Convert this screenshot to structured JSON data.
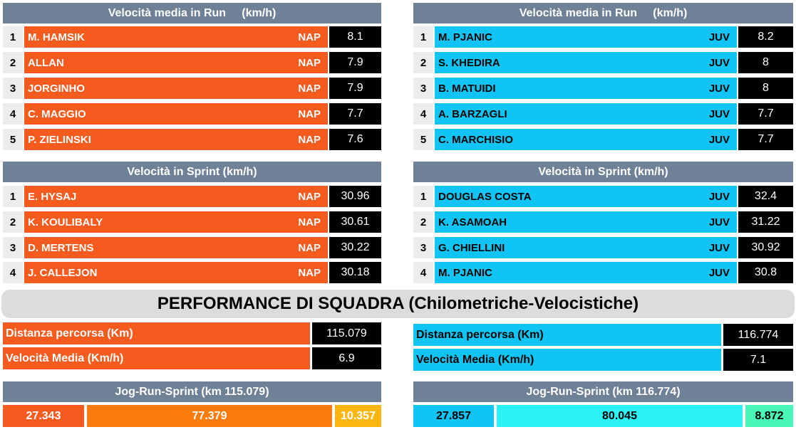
{
  "run_speed": {
    "title": "Velocità media in Run     (km/h)",
    "nap": [
      {
        "rank": "1",
        "name": "M. HAMSIK",
        "team": "NAP",
        "value": "8.1"
      },
      {
        "rank": "2",
        "name": "ALLAN",
        "team": "NAP",
        "value": "7.9"
      },
      {
        "rank": "3",
        "name": "JORGINHO",
        "team": "NAP",
        "value": "7.9"
      },
      {
        "rank": "4",
        "name": "C. MAGGIO",
        "team": "NAP",
        "value": "7.7"
      },
      {
        "rank": "5",
        "name": "P. ZIELINSKI",
        "team": "NAP",
        "value": "7.6"
      }
    ],
    "juv": [
      {
        "rank": "1",
        "name": "M. PJANIC",
        "team": "JUV",
        "value": "8.2"
      },
      {
        "rank": "2",
        "name": "S. KHEDIRA",
        "team": "JUV",
        "value": "8"
      },
      {
        "rank": "3",
        "name": "B. MATUIDI",
        "team": "JUV",
        "value": "8"
      },
      {
        "rank": "4",
        "name": "A. BARZAGLI",
        "team": "JUV",
        "value": "7.7"
      },
      {
        "rank": "5",
        "name": "C. MARCHISIO",
        "team": "JUV",
        "value": "7.7"
      }
    ]
  },
  "sprint_speed": {
    "title": "Velocità in Sprint (km/h)",
    "nap": [
      {
        "rank": "1",
        "name": "E. HYSAJ",
        "team": "NAP",
        "value": "30.96"
      },
      {
        "rank": "2",
        "name": "K. KOULIBALY",
        "team": "NAP",
        "value": "30.61"
      },
      {
        "rank": "3",
        "name": "D. MERTENS",
        "team": "NAP",
        "value": "30.22"
      },
      {
        "rank": "4",
        "name": "J. CALLEJON",
        "team": "NAP",
        "value": "30.18"
      }
    ],
    "juv": [
      {
        "rank": "1",
        "name": "DOUGLAS COSTA",
        "team": "JUV",
        "value": "32.4"
      },
      {
        "rank": "2",
        "name": "K. ASAMOAH",
        "team": "JUV",
        "value": "31.22"
      },
      {
        "rank": "3",
        "name": "G. CHIELLINI",
        "team": "JUV",
        "value": "30.92"
      },
      {
        "rank": "4",
        "name": "M. PJANIC",
        "team": "JUV",
        "value": "30.8"
      }
    ]
  },
  "team_performance": {
    "title": "PERFORMANCE DI SQUADRA (Chilometriche-Velocistiche)",
    "nap": {
      "distance_label": "Distanza percorsa (Km)",
      "distance_value": "115.079",
      "speed_label": "Velocità Media (Km/h)",
      "speed_value": "6.9",
      "jrs_title": "Jog-Run-Sprint (km 115.079)",
      "jog": "27.343",
      "run": "77.379",
      "sprint": "10.357"
    },
    "juv": {
      "distance_label": "Distanza percorsa (Km)",
      "distance_value": "116.774",
      "speed_label": "Velocità Media (Km/h)",
      "speed_value": "7.1",
      "jrs_title": "Jog-Run-Sprint (km 116.774)",
      "jog": "27.857",
      "run": "80.045",
      "sprint": "8.872"
    }
  },
  "colors": {
    "nap": "#f55b1e",
    "juv": "#10c4f4",
    "header": "#6f8196",
    "nap_run": "#fb7c0a",
    "nap_sprint": "#fbb611",
    "juv_run": "#2bf2f7",
    "juv_sprint": "#47f8b8"
  }
}
